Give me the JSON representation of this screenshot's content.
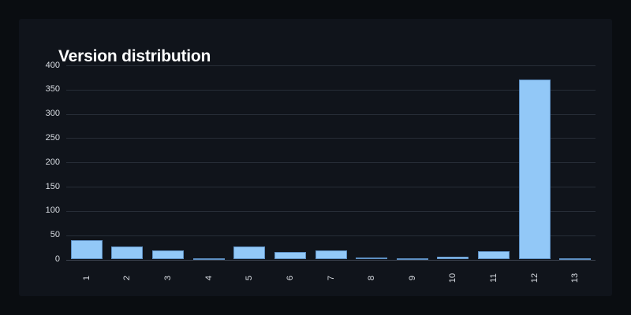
{
  "page": {
    "background": "#0a0d11",
    "panel_background": "#10141b"
  },
  "chart_data": {
    "type": "bar",
    "title": "Version distribution",
    "categories": [
      "1",
      "2",
      "3",
      "4",
      "5",
      "6",
      "7",
      "8",
      "9",
      "10",
      "11",
      "12",
      "13"
    ],
    "values": [
      40,
      26,
      18,
      2,
      27,
      16,
      18,
      4,
      3,
      6,
      17,
      370,
      3
    ],
    "xlabel": "",
    "ylabel": "",
    "ylim": [
      0,
      400
    ],
    "yticks": [
      0,
      50,
      100,
      150,
      200,
      250,
      300,
      350,
      400
    ],
    "grid": "horizontal",
    "legend": "none",
    "x_tick_rotation": -90,
    "colors": {
      "bar_fill": "#92c8f7",
      "bar_border": "#5d8fc2",
      "grid_line": "#272d37",
      "axis_line": "#3a414d",
      "tick_label": "#d9dde3",
      "title": "#ffffff"
    }
  }
}
